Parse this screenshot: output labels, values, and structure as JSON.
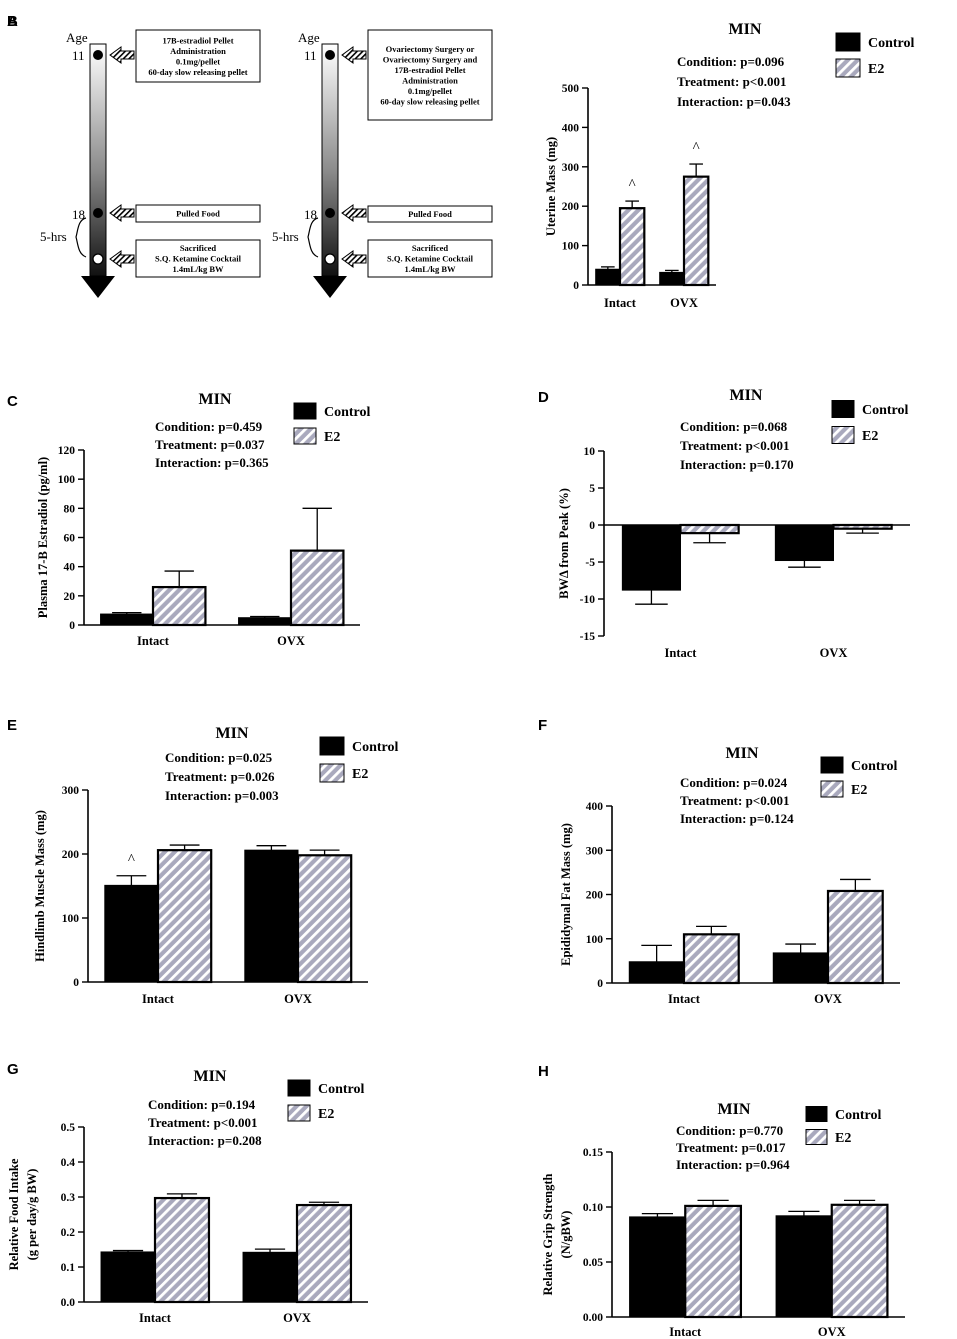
{
  "panel_a": {
    "label": "A",
    "timelines": [
      {
        "age_label": "Age",
        "ticks": [
          "11",
          "18"
        ],
        "interval_label": "5-hrs",
        "boxes": [
          [
            "17B-estradiol Pellet",
            "Administration",
            "0.1mg/pellet",
            "60-day slow releasing pellet"
          ],
          [
            "Pulled Food"
          ],
          [
            "Sacrificed",
            "S.Q. Ketamine Cocktail",
            "1.4mL/kg BW"
          ]
        ]
      },
      {
        "age_label": "Age",
        "ticks": [
          "11",
          "18"
        ],
        "interval_label": "5-hrs",
        "boxes": [
          [
            "Ovariectomy Surgery or",
            "Ovariectomy Surgery and",
            "17B-estradiol Pellet",
            "Administration",
            "0.1mg/pellet",
            "60-day slow releasing pellet"
          ],
          [
            "Pulled Food"
          ],
          [
            "Sacrificed",
            "S.Q. Ketamine Cocktail",
            "1.4mL/kg BW"
          ]
        ]
      }
    ]
  },
  "colors": {
    "control": "#000000",
    "e2_fill": "#a9a9bd",
    "e2_stripe": "#ffffff"
  },
  "chart_data": [
    {
      "panel": "B",
      "type": "bar",
      "title": "MIN",
      "stats": [
        "Condition: p=0.096",
        "Treatment: p<0.001",
        "Interaction: p=0.043"
      ],
      "legend": [
        "Control",
        "E2"
      ],
      "categories": [
        "Intact",
        "OVX"
      ],
      "ylabel": "Uterine Mass (mg)",
      "ylim": [
        0,
        500
      ],
      "yticks": [
        0,
        100,
        200,
        300,
        400,
        500
      ],
      "yticklabels": [
        "0",
        "100",
        "200",
        "300",
        "400",
        "500"
      ],
      "series": [
        {
          "name": "Control",
          "values": [
            40,
            32
          ],
          "errors": [
            6,
            5
          ]
        },
        {
          "name": "E2",
          "values": [
            195,
            275
          ],
          "errors": [
            18,
            32
          ]
        }
      ],
      "annotations": [
        {
          "series": 1,
          "index": 0,
          "text": "^"
        },
        {
          "series": 1,
          "index": 1,
          "text": "^"
        }
      ]
    },
    {
      "panel": "C",
      "type": "bar",
      "title": "MIN",
      "stats": [
        "Condition: p=0.459",
        "Treatment: p=0.037",
        "Interaction: p=0.365"
      ],
      "legend": [
        "Control",
        "E2"
      ],
      "categories": [
        "Intact",
        "OVX"
      ],
      "ylabel": "Plasma 17-B Estradiol (pg/ml)",
      "ylim": [
        0,
        120
      ],
      "yticks": [
        0,
        20,
        40,
        60,
        80,
        100,
        120
      ],
      "yticklabels": [
        "0",
        "20",
        "40",
        "60",
        "80",
        "100",
        "120"
      ],
      "series": [
        {
          "name": "Control",
          "values": [
            7.5,
            5
          ],
          "errors": [
            1,
            0.8
          ]
        },
        {
          "name": "E2",
          "values": [
            26,
            51
          ],
          "errors": [
            11,
            29
          ]
        }
      ],
      "annotations": []
    },
    {
      "panel": "D",
      "type": "bar",
      "title": "MIN",
      "stats": [
        "Condition: p=0.068",
        "Treatment: p<0.001",
        "Interaction: p=0.170"
      ],
      "legend": [
        "Control",
        "E2"
      ],
      "categories": [
        "Intact",
        "OVX"
      ],
      "ylabel": "BWΔ from Peak (%)",
      "ylim": [
        -15,
        10
      ],
      "yticks": [
        -15,
        -10,
        -5,
        0,
        5,
        10
      ],
      "yticklabels": [
        "-15",
        "-10",
        "-5",
        "0",
        "5",
        "10"
      ],
      "series": [
        {
          "name": "Control",
          "values": [
            -8.8,
            -4.8
          ],
          "errors": [
            1.9,
            0.9
          ]
        },
        {
          "name": "E2",
          "values": [
            -1.1,
            -0.5
          ],
          "errors": [
            1.3,
            0.6
          ]
        }
      ],
      "annotations": []
    },
    {
      "panel": "E",
      "type": "bar",
      "title": "MIN",
      "stats": [
        "Condition: p=0.025",
        "Treatment: p=0.026",
        "Interaction: p=0.003"
      ],
      "legend": [
        "Control",
        "E2"
      ],
      "categories": [
        "Intact",
        "OVX"
      ],
      "ylabel": "Hindlimb Muscle Mass (mg)",
      "ylim": [
        0,
        300
      ],
      "yticks": [
        0,
        100,
        200,
        300
      ],
      "yticklabels": [
        "0",
        "100",
        "200",
        "300"
      ],
      "series": [
        {
          "name": "Control",
          "values": [
            151,
            206
          ],
          "errors": [
            15,
            7
          ]
        },
        {
          "name": "E2",
          "values": [
            206,
            198
          ],
          "errors": [
            8,
            8
          ]
        }
      ],
      "annotations": [
        {
          "series": 0,
          "index": 0,
          "text": "^"
        }
      ]
    },
    {
      "panel": "F",
      "type": "bar",
      "title": "MIN",
      "stats": [
        "Condition: p=0.024",
        "Treatment: p<0.001",
        "Interaction: p=0.124"
      ],
      "legend": [
        "Control",
        "E2"
      ],
      "categories": [
        "Intact",
        "OVX"
      ],
      "ylabel": "Epididymal Fat Mass (mg)",
      "ylim": [
        0,
        400
      ],
      "yticks": [
        0,
        100,
        200,
        300,
        400
      ],
      "yticklabels": [
        "0",
        "100",
        "200",
        "300",
        "400"
      ],
      "series": [
        {
          "name": "Control",
          "values": [
            48,
            68
          ],
          "errors": [
            37,
            20
          ]
        },
        {
          "name": "E2",
          "values": [
            110,
            208
          ],
          "errors": [
            18,
            26
          ]
        }
      ],
      "annotations": []
    },
    {
      "panel": "G",
      "type": "bar",
      "title": "MIN",
      "stats": [
        "Condition: p=0.194",
        "Treatment: p<0.001",
        "Interaction: p=0.208"
      ],
      "legend": [
        "Control",
        "E2"
      ],
      "categories": [
        "Intact",
        "OVX"
      ],
      "ylabel": "Relative Food Intake",
      "ylabel2": "(g per day/g BW)",
      "ylim": [
        0,
        0.5
      ],
      "yticks": [
        0,
        0.1,
        0.2,
        0.3,
        0.4,
        0.5
      ],
      "yticklabels": [
        "0.0",
        "0.1",
        "0.2",
        "0.3",
        "0.4",
        "0.5"
      ],
      "series": [
        {
          "name": "Control",
          "values": [
            0.143,
            0.142
          ],
          "errors": [
            0.004,
            0.009
          ]
        },
        {
          "name": "E2",
          "values": [
            0.297,
            0.277
          ],
          "errors": [
            0.012,
            0.008
          ]
        }
      ],
      "annotations": []
    },
    {
      "panel": "H",
      "type": "bar",
      "title": "MIN",
      "stats": [
        "Condition: p=0.770",
        "Treatment: p=0.017",
        "Interaction: p=0.964"
      ],
      "legend": [
        "Control",
        "E2"
      ],
      "categories": [
        "Intact",
        "OVX"
      ],
      "ylabel": "Relative Grip Strength",
      "ylabel2": "(N/gBW)",
      "ylim": [
        0,
        0.15
      ],
      "yticks": [
        0,
        0.05,
        0.1,
        0.15
      ],
      "yticklabels": [
        "0.00",
        "0.05",
        "0.10",
        "0.15"
      ],
      "series": [
        {
          "name": "Control",
          "values": [
            0.091,
            0.092
          ],
          "errors": [
            0.003,
            0.004
          ]
        },
        {
          "name": "E2",
          "values": [
            0.101,
            0.102
          ],
          "errors": [
            0.005,
            0.004
          ]
        }
      ],
      "annotations": []
    }
  ]
}
